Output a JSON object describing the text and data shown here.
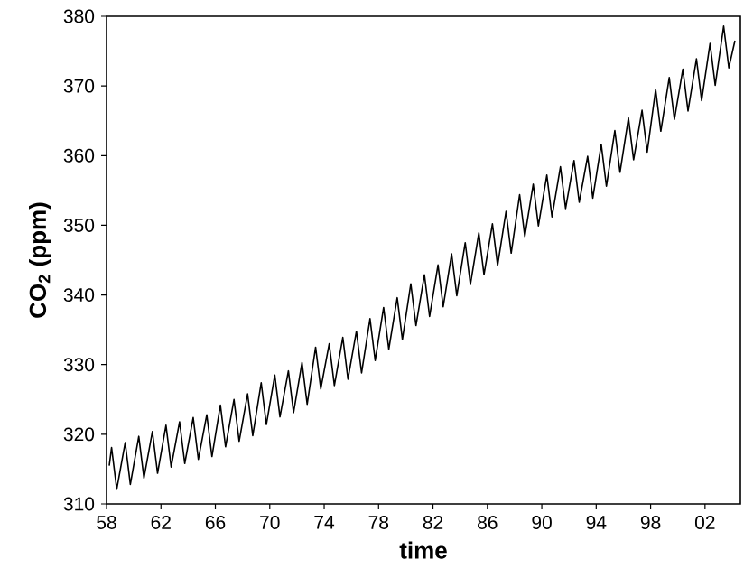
{
  "chart_data": {
    "type": "line",
    "xlabel": "time",
    "ylabel": "CO$_{2}$ (ppm)",
    "xlim": [
      1958,
      2004.6
    ],
    "ylim": [
      310,
      380
    ],
    "xticks": [
      {
        "value": 1958,
        "label": "58"
      },
      {
        "value": 1962,
        "label": "62"
      },
      {
        "value": 1966,
        "label": "66"
      },
      {
        "value": 1970,
        "label": "70"
      },
      {
        "value": 1974,
        "label": "74"
      },
      {
        "value": 1978,
        "label": "78"
      },
      {
        "value": 1982,
        "label": "82"
      },
      {
        "value": 1986,
        "label": "86"
      },
      {
        "value": 1990,
        "label": "90"
      },
      {
        "value": 1994,
        "label": "94"
      },
      {
        "value": 1998,
        "label": "98"
      },
      {
        "value": 2002,
        "label": "02"
      }
    ],
    "yticks": [
      310,
      320,
      330,
      340,
      350,
      360,
      370,
      380
    ],
    "line_style": "solid",
    "series": [
      {
        "color": "#000000",
        "x": [
          1958.2,
          1958.37,
          1958.75,
          1959.37,
          1959.75,
          1960.37,
          1960.75,
          1961.37,
          1961.75,
          1962.37,
          1962.75,
          1963.37,
          1963.75,
          1964.37,
          1964.75,
          1965.37,
          1965.75,
          1966.37,
          1966.75,
          1967.37,
          1967.75,
          1968.37,
          1968.75,
          1969.37,
          1969.75,
          1970.37,
          1970.75,
          1971.37,
          1971.75,
          1972.37,
          1972.75,
          1973.37,
          1973.75,
          1974.37,
          1974.75,
          1975.37,
          1975.75,
          1976.37,
          1976.75,
          1977.37,
          1977.75,
          1978.37,
          1978.75,
          1979.37,
          1979.75,
          1980.37,
          1980.75,
          1981.37,
          1981.75,
          1982.37,
          1982.75,
          1983.37,
          1983.75,
          1984.37,
          1984.75,
          1985.37,
          1985.75,
          1986.37,
          1986.75,
          1987.37,
          1987.75,
          1988.37,
          1988.75,
          1989.37,
          1989.75,
          1990.37,
          1990.75,
          1991.37,
          1991.75,
          1992.37,
          1992.75,
          1993.37,
          1993.75,
          1994.37,
          1994.75,
          1995.37,
          1995.75,
          1996.37,
          1996.75,
          1997.37,
          1997.75,
          1998.37,
          1998.75,
          1999.37,
          1999.75,
          2000.37,
          2000.75,
          2001.37,
          2001.75,
          2002.37,
          2002.75,
          2003.37,
          2003.75,
          2004.2
        ],
        "values": [
          315.5,
          318.1,
          312.1,
          318.8,
          312.8,
          319.7,
          313.7,
          320.4,
          314.4,
          321.3,
          315.3,
          321.8,
          315.8,
          322.4,
          316.4,
          322.8,
          316.8,
          324.2,
          318.2,
          325.0,
          319.0,
          325.8,
          319.8,
          327.4,
          321.4,
          328.5,
          322.5,
          329.1,
          323.1,
          330.3,
          324.3,
          332.5,
          326.5,
          333.0,
          327.0,
          333.9,
          327.9,
          334.8,
          328.8,
          336.6,
          330.6,
          338.2,
          332.2,
          339.6,
          333.6,
          341.6,
          335.6,
          342.9,
          336.9,
          344.3,
          338.3,
          345.9,
          339.9,
          347.5,
          341.5,
          348.9,
          342.9,
          350.2,
          344.2,
          352.0,
          346.0,
          354.4,
          348.4,
          355.9,
          349.9,
          357.2,
          351.2,
          358.4,
          352.4,
          359.3,
          353.3,
          359.9,
          353.9,
          361.6,
          355.6,
          363.6,
          357.6,
          365.4,
          359.4,
          366.5,
          360.5,
          369.5,
          363.5,
          371.2,
          365.2,
          372.4,
          366.4,
          373.9,
          367.9,
          376.1,
          370.1,
          378.6,
          372.6,
          376.5
        ]
      }
    ]
  }
}
